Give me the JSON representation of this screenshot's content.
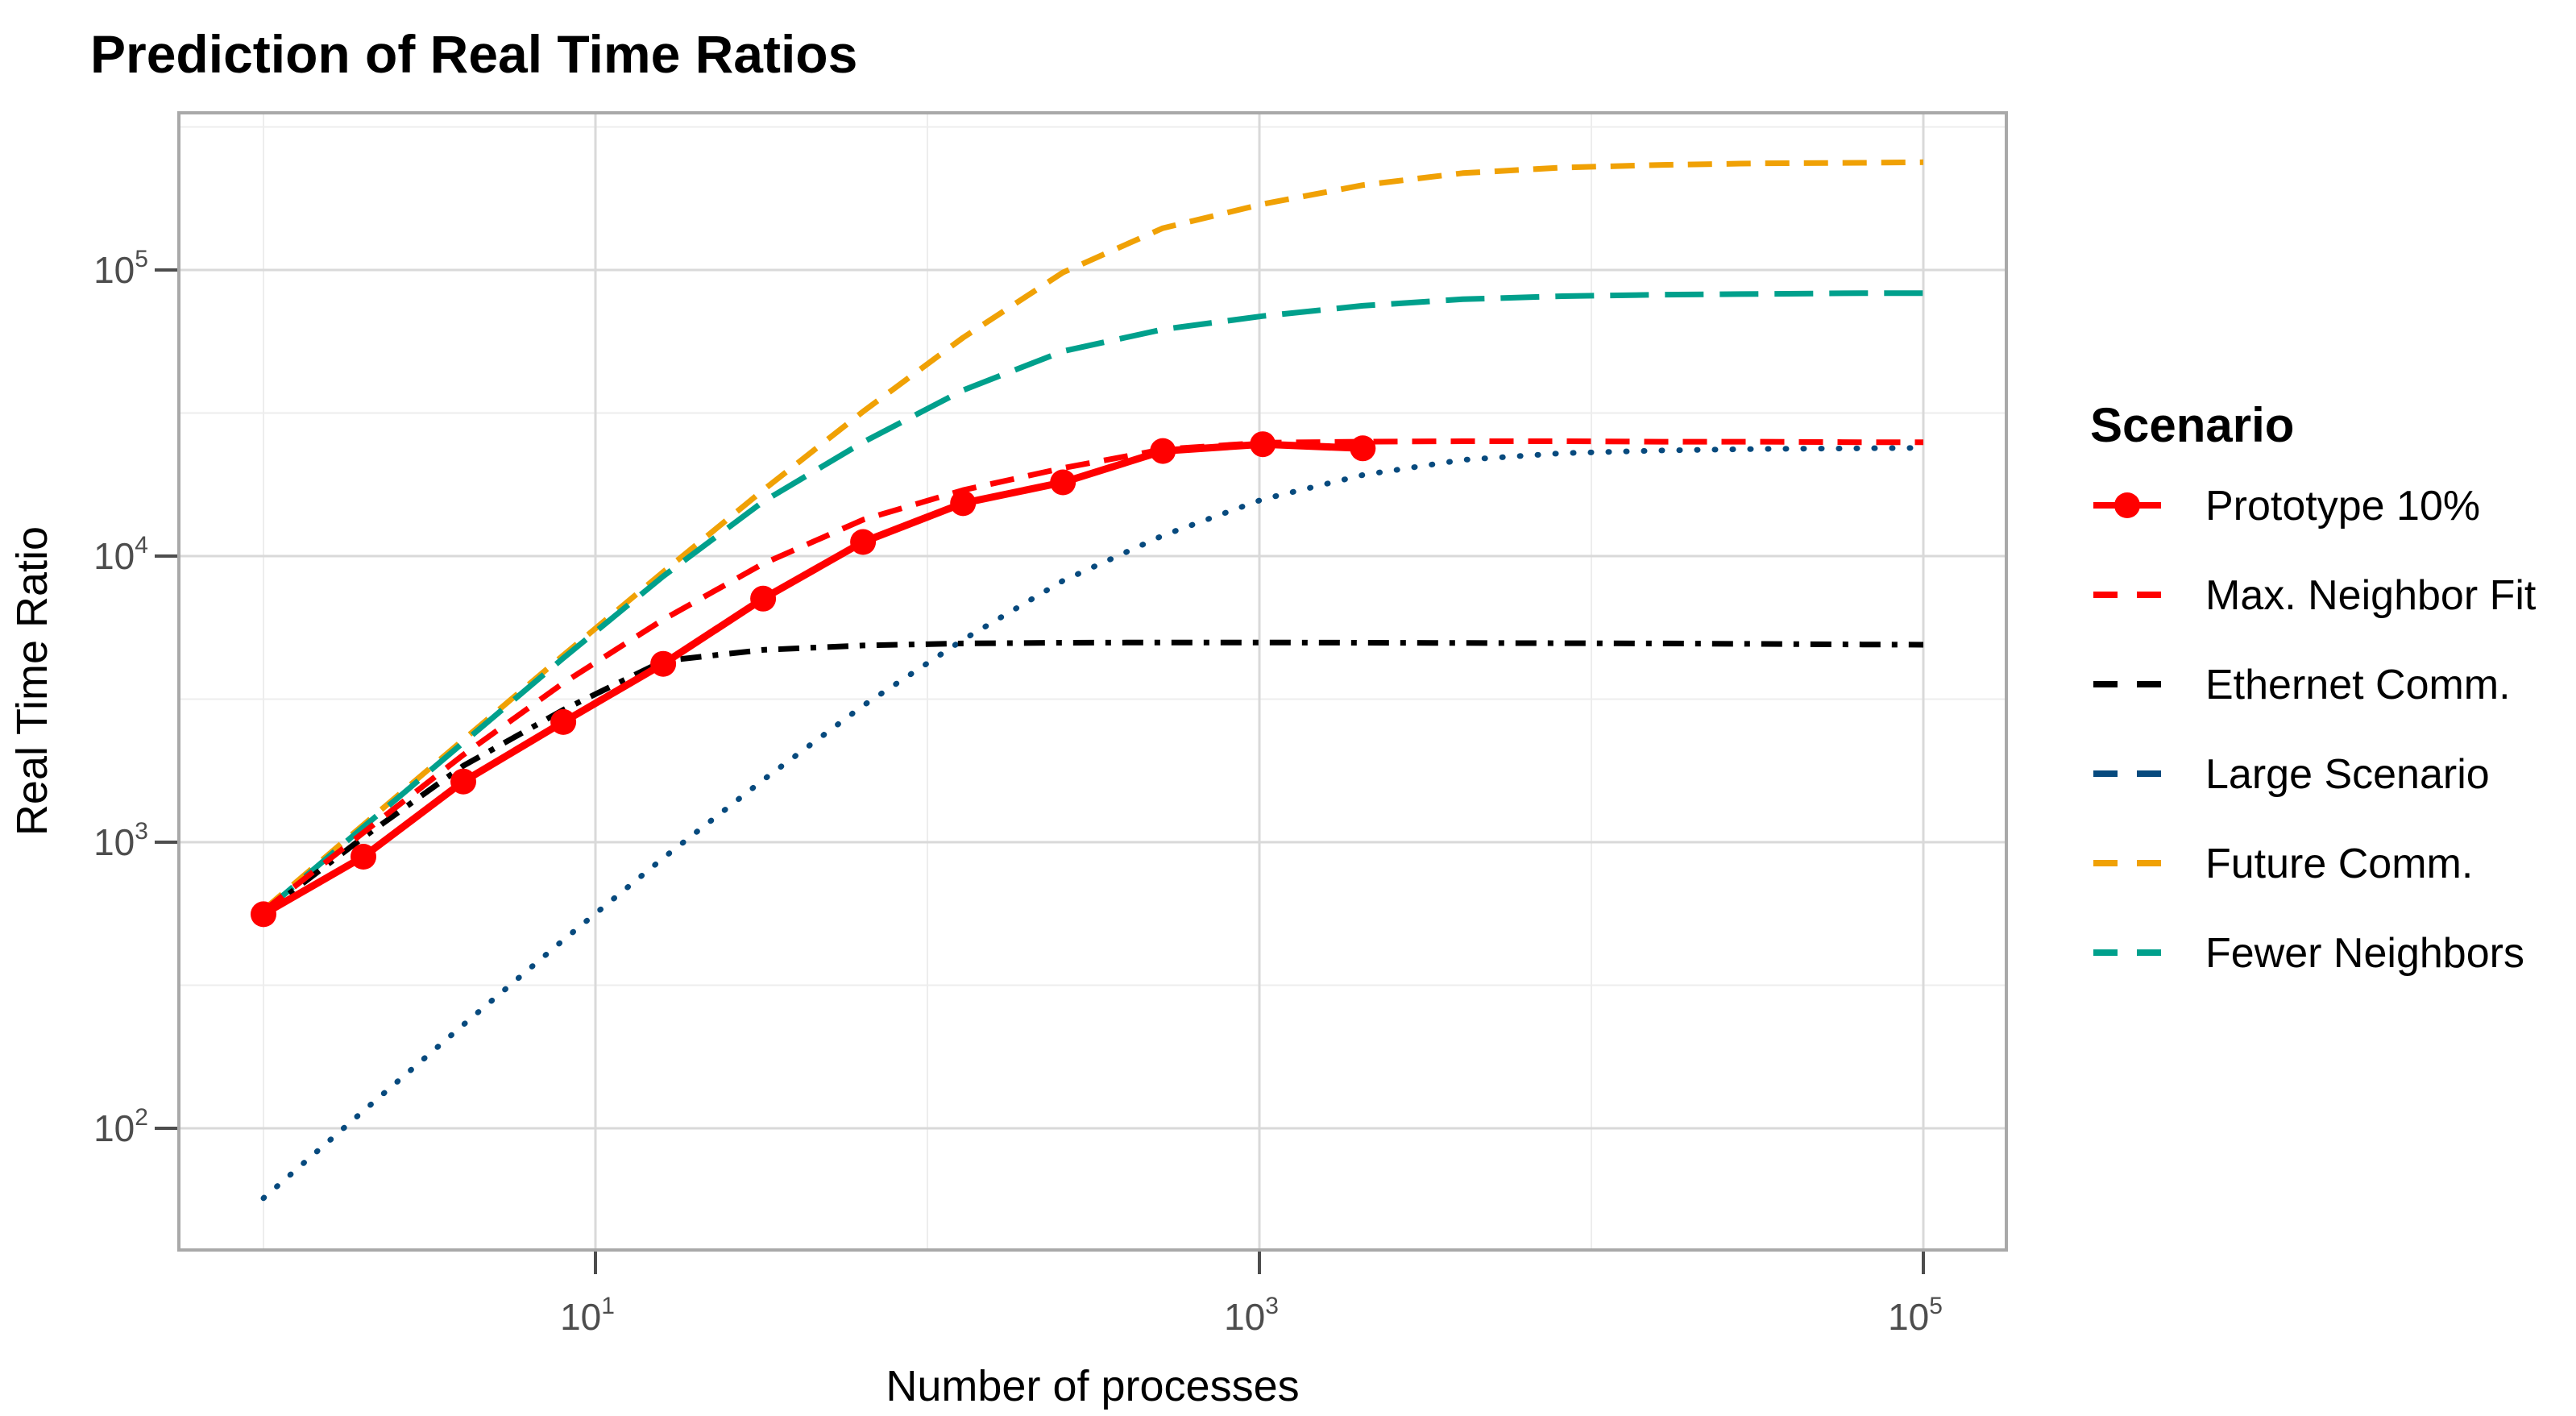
{
  "title": "Prediction of Real Time Ratios",
  "axes": {
    "x": {
      "label": "Number of processes",
      "scale": "log10",
      "ticks": [
        {
          "base": "10",
          "exp": "1",
          "value": 10
        },
        {
          "base": "10",
          "exp": "3",
          "value": 1000
        },
        {
          "base": "10",
          "exp": "5",
          "value": 100000
        }
      ]
    },
    "y": {
      "label": "Real Time Ratio",
      "scale": "log10",
      "ticks": [
        {
          "base": "10",
          "exp": "2",
          "value": 100
        },
        {
          "base": "10",
          "exp": "3",
          "value": 1000
        },
        {
          "base": "10",
          "exp": "4",
          "value": 10000
        },
        {
          "base": "10",
          "exp": "5",
          "value": 100000
        }
      ]
    }
  },
  "legend": {
    "title": "Scenario",
    "items": [
      {
        "label": "Prototype 10%",
        "series": "Prototype 10%"
      },
      {
        "label": "Max. Neighbor Fit",
        "series": "Max. Neighbor Fit"
      },
      {
        "label": "Ethernet Comm.",
        "series": "Ethernet Comm."
      },
      {
        "label": "Large Scenario",
        "series": "Large Scenario"
      },
      {
        "label": "Future Comm.",
        "series": "Future Comm."
      },
      {
        "label": "Fewer Neighbors",
        "series": "Fewer Neighbors"
      }
    ]
  },
  "colors": {
    "red": "#FF0000",
    "orange": "#F0A105",
    "teal": "#00A08C",
    "blue": "#074A7E",
    "black": "#000000",
    "grid_major": "#D9D9D9",
    "grid_minor": "#EDEDED",
    "panel_border": "#A9A9A9",
    "tick_text": "#4D4D4D"
  },
  "chart_data": {
    "type": "line",
    "title": "Prediction of Real Time Ratios",
    "xlabel": "Number of processes",
    "ylabel": "Real Time Ratio",
    "x_scale": "log",
    "y_scale": "log",
    "xlim": [
      1,
      100000
    ],
    "ylim": [
      57,
      240000
    ],
    "x_tick_values": [
      10,
      1000,
      100000
    ],
    "y_tick_values": [
      100,
      1000,
      10000,
      100000
    ],
    "grid": true,
    "legend_position": "right",
    "series": [
      {
        "name": "Future Comm.",
        "color": "#F0A105",
        "style": "dashed",
        "marker": "none",
        "points": [
          [
            1,
            580
          ],
          [
            2,
            1150
          ],
          [
            4,
            2280
          ],
          [
            8,
            4500
          ],
          [
            16,
            8800
          ],
          [
            32,
            17000
          ],
          [
            64,
            32000
          ],
          [
            128,
            58000
          ],
          [
            256,
            98000
          ],
          [
            512,
            140000
          ],
          [
            1024,
            170000
          ],
          [
            2048,
            198000
          ],
          [
            4096,
            218000
          ],
          [
            8192,
            228000
          ],
          [
            16384,
            233000
          ],
          [
            32768,
            236000
          ],
          [
            65536,
            237000
          ],
          [
            100000,
            238000
          ]
        ]
      },
      {
        "name": "Fewer Neighbors",
        "color": "#00A08C",
        "style": "longdash",
        "marker": "none",
        "points": [
          [
            1,
            570
          ],
          [
            2,
            1130
          ],
          [
            4,
            2230
          ],
          [
            8,
            4400
          ],
          [
            16,
            8500
          ],
          [
            32,
            15500
          ],
          [
            64,
            25000
          ],
          [
            128,
            38000
          ],
          [
            256,
            52000
          ],
          [
            512,
            62000
          ],
          [
            1024,
            69000
          ],
          [
            2048,
            75000
          ],
          [
            4096,
            79000
          ],
          [
            8192,
            81000
          ],
          [
            16384,
            82000
          ],
          [
            32768,
            82500
          ],
          [
            65536,
            83000
          ],
          [
            100000,
            83000
          ]
        ]
      },
      {
        "name": "Large Scenario",
        "color": "#074A7E",
        "style": "dotted",
        "marker": "none",
        "points": [
          [
            1,
            57
          ],
          [
            2,
            115
          ],
          [
            4,
            230
          ],
          [
            8,
            455
          ],
          [
            16,
            880
          ],
          [
            32,
            1650
          ],
          [
            64,
            3000
          ],
          [
            128,
            5100
          ],
          [
            256,
            8200
          ],
          [
            512,
            11800
          ],
          [
            1024,
            15800
          ],
          [
            2048,
            19200
          ],
          [
            4096,
            21700
          ],
          [
            8192,
            22900
          ],
          [
            16384,
            23400
          ],
          [
            32768,
            23700
          ],
          [
            65536,
            23800
          ],
          [
            100000,
            23900
          ]
        ]
      },
      {
        "name": "Ethernet Comm.",
        "color": "#000000",
        "style": "dotdash",
        "marker": "none",
        "points": [
          [
            1,
            565
          ],
          [
            2,
            1040
          ],
          [
            4,
            1850
          ],
          [
            8,
            2900
          ],
          [
            16,
            4300
          ],
          [
            32,
            4700
          ],
          [
            64,
            4870
          ],
          [
            128,
            4950
          ],
          [
            256,
            4980
          ],
          [
            512,
            4990
          ],
          [
            1024,
            4990
          ],
          [
            2048,
            4980
          ],
          [
            4096,
            4970
          ],
          [
            8192,
            4960
          ],
          [
            16384,
            4950
          ],
          [
            32768,
            4930
          ],
          [
            65536,
            4910
          ],
          [
            100000,
            4900
          ]
        ]
      },
      {
        "name": "Max. Neighbor Fit",
        "color": "#FF0000",
        "style": "dashed",
        "marker": "none",
        "points": [
          [
            1,
            575
          ],
          [
            2,
            1080
          ],
          [
            4,
            2020
          ],
          [
            8,
            3600
          ],
          [
            16,
            6000
          ],
          [
            32,
            9400
          ],
          [
            64,
            13400
          ],
          [
            128,
            17000
          ],
          [
            256,
            20300
          ],
          [
            512,
            23600
          ],
          [
            1024,
            24900
          ],
          [
            2048,
            25100
          ],
          [
            4096,
            25200
          ],
          [
            8192,
            25200
          ],
          [
            16384,
            25100
          ],
          [
            32768,
            25100
          ],
          [
            65536,
            25000
          ],
          [
            100000,
            25000
          ]
        ]
      },
      {
        "name": "Prototype 10%",
        "color": "#FF0000",
        "style": "solid",
        "marker": "circle",
        "points": [
          [
            1,
            560
          ],
          [
            2,
            890
          ],
          [
            4,
            1630
          ],
          [
            8,
            2630
          ],
          [
            16,
            4200
          ],
          [
            32,
            7100
          ],
          [
            64,
            11200
          ],
          [
            128,
            15300
          ],
          [
            256,
            18100
          ],
          [
            512,
            23300
          ],
          [
            1024,
            24600
          ],
          [
            2048,
            23800
          ]
        ]
      }
    ]
  }
}
